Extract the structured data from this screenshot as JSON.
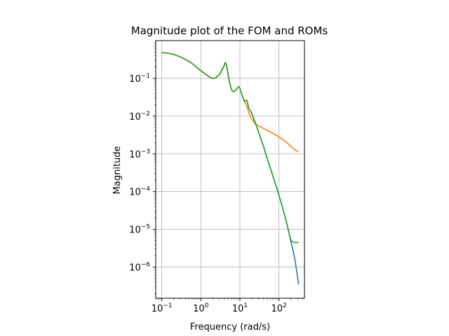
{
  "chart_data": {
    "type": "line",
    "title": "Magnitude plot of the FOM and ROMs",
    "xlabel": "Frequency (rad/s)",
    "ylabel": "Magnitude",
    "xscale": "log",
    "yscale": "log",
    "xlim": [
      0.07,
      450
    ],
    "ylim": [
      1.5e-07,
      1.0
    ],
    "grid": true,
    "x_ticks": [
      {
        "base": "10",
        "exp": "−1",
        "value": 0.1
      },
      {
        "base": "10",
        "exp": "0",
        "value": 1
      },
      {
        "base": "10",
        "exp": "1",
        "value": 10
      },
      {
        "base": "10",
        "exp": "2",
        "value": 100
      }
    ],
    "y_ticks": [
      {
        "base": "10",
        "exp": "−6",
        "value": 1e-06
      },
      {
        "base": "10",
        "exp": "−5",
        "value": 1e-05
      },
      {
        "base": "10",
        "exp": "−4",
        "value": 0.0001
      },
      {
        "base": "10",
        "exp": "−3",
        "value": 0.001
      },
      {
        "base": "10",
        "exp": "−2",
        "value": 0.01
      },
      {
        "base": "10",
        "exp": "−1",
        "value": 0.1
      }
    ],
    "series": [
      {
        "color": "#1f77b4",
        "x": [
          0.1,
          0.2,
          0.5,
          1.0,
          2.0,
          3.0,
          3.8,
          4.3,
          4.8,
          5.5,
          6.5,
          8.0,
          9.5,
          11.0,
          13.0,
          15.0,
          17.0,
          20.0,
          25.0,
          30.0,
          40.0,
          50.0,
          70.0,
          100.0,
          150.0,
          200.0,
          250.0,
          320.0
        ],
        "y": [
          0.48,
          0.43,
          0.28,
          0.16,
          0.1,
          0.13,
          0.2,
          0.26,
          0.16,
          0.075,
          0.045,
          0.05,
          0.06,
          0.04,
          0.025,
          0.026,
          0.016,
          0.012,
          0.0065,
          0.0038,
          0.0016,
          0.00075,
          0.00026,
          8e-05,
          1.8e-05,
          5e-06,
          1.8e-06,
          3.5e-07
        ]
      },
      {
        "color": "#ff7f0e",
        "x": [
          0.1,
          0.2,
          0.5,
          1.0,
          2.0,
          3.0,
          3.8,
          4.3,
          4.8,
          5.5,
          6.5,
          8.0,
          9.5,
          11.0,
          13.0,
          15.0,
          17.0,
          20.0,
          25.0,
          30.0,
          40.0,
          50.0,
          70.0,
          100.0,
          150.0,
          200.0,
          250.0,
          320.0
        ],
        "y": [
          0.48,
          0.43,
          0.28,
          0.16,
          0.1,
          0.13,
          0.2,
          0.26,
          0.16,
          0.075,
          0.045,
          0.05,
          0.06,
          0.04,
          0.025,
          0.018,
          0.012,
          0.0085,
          0.0062,
          0.0055,
          0.0047,
          0.0042,
          0.0035,
          0.0028,
          0.0021,
          0.0016,
          0.0013,
          0.00112
        ]
      },
      {
        "color": "#2ca02c",
        "x": [
          0.1,
          0.2,
          0.5,
          1.0,
          2.0,
          3.0,
          3.8,
          4.3,
          4.8,
          5.5,
          6.5,
          8.0,
          9.5,
          11.0,
          13.0,
          15.0,
          17.0,
          20.0,
          25.0,
          30.0,
          40.0,
          50.0,
          70.0,
          100.0,
          150.0,
          200.0,
          250.0,
          320.0
        ],
        "y": [
          0.48,
          0.43,
          0.28,
          0.16,
          0.1,
          0.13,
          0.2,
          0.26,
          0.16,
          0.075,
          0.045,
          0.05,
          0.06,
          0.04,
          0.025,
          0.026,
          0.016,
          0.012,
          0.0065,
          0.0038,
          0.0016,
          0.00075,
          0.00026,
          8e-05,
          1.8e-05,
          5.5e-06,
          4.5e-06,
          4.5e-06
        ]
      }
    ]
  }
}
